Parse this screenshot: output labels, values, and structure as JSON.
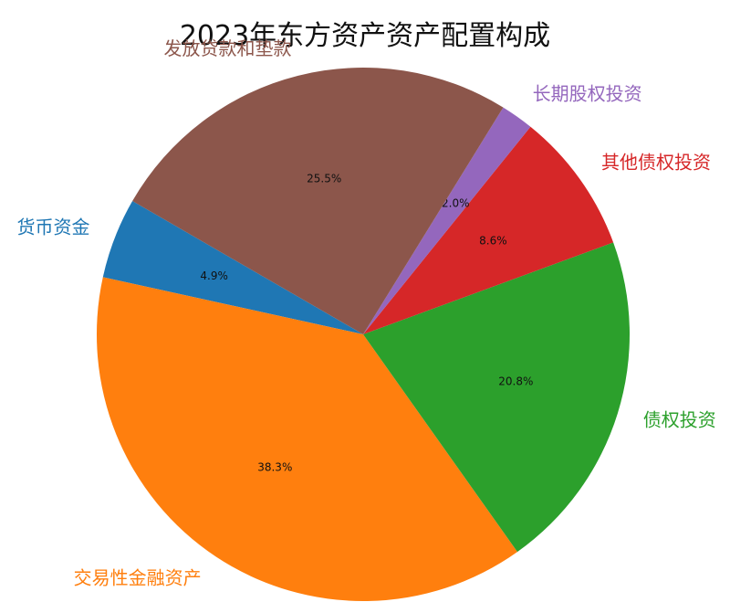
{
  "chart_data": {
    "type": "pie",
    "title": "2023年东方资产资产配置构成",
    "categories": [
      "货币资金",
      "交易性金融资产",
      "债权投资",
      "其他债权投资",
      "长期股权投资",
      "发放贷款和垫款"
    ],
    "values": [
      4.9,
      38.3,
      20.8,
      8.6,
      2.0,
      25.5
    ],
    "value_labels": [
      "4.9%",
      "38.3%",
      "20.8%",
      "8.6%",
      "2.0%",
      "25.5%"
    ],
    "colors": [
      "#1f77b4",
      "#ff7f0e",
      "#2ca02c",
      "#d62728",
      "#9467bd",
      "#8c564b"
    ],
    "start_angle_deg": 150,
    "direction": "counterclockwise",
    "legend": "none"
  }
}
